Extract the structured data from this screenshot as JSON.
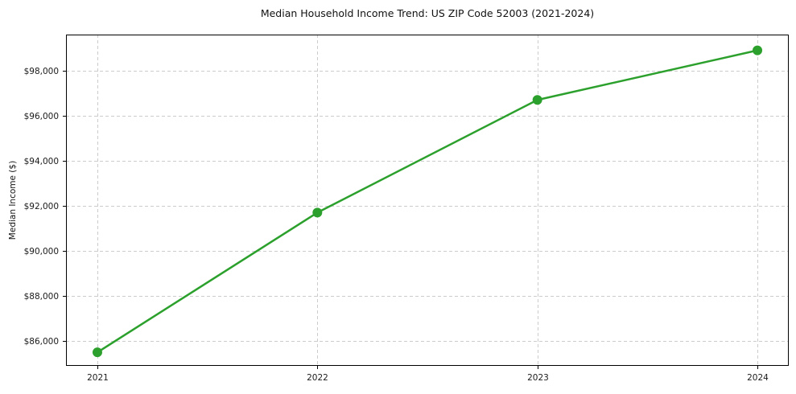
{
  "chart_data": {
    "type": "line",
    "title": "Median Household Income Trend: US ZIP Code 52003 (2021-2024)",
    "ylabel": "Median Income ($)",
    "xlabel": "",
    "categories": [
      "2021",
      "2022",
      "2023",
      "2024"
    ],
    "series": [
      {
        "name": "Median Household Income",
        "values": [
          85500,
          91700,
          96700,
          98900
        ]
      }
    ],
    "ylim": [
      84900,
      99600
    ],
    "yticks": [
      86000,
      88000,
      90000,
      92000,
      94000,
      96000,
      98000
    ],
    "ytick_labels": [
      "$86,000",
      "$88,000",
      "$90,000",
      "$92,000",
      "$94,000",
      "$96,000",
      "$98,000"
    ],
    "xtick_labels": [
      "2021",
      "2022",
      "2023",
      "2024"
    ],
    "grid": true,
    "grid_style": "dashed",
    "legend": "none",
    "colors": {
      "line": "#2ca02c",
      "marker": "#2ca02c",
      "grid": "#cccccc",
      "text": "#1a1a1a",
      "spine": "#000000"
    }
  }
}
